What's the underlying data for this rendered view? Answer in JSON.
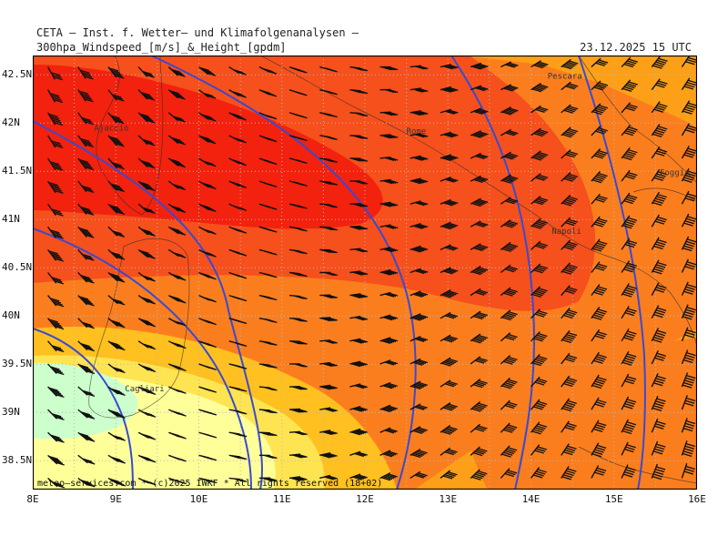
{
  "header": {
    "title": "CETA — Inst. f. Wetter— und Klimafolgenanalysen —",
    "subtitle": "300hpa_Windspeed_[m/s]_&_Height_[gpdm]",
    "valid_time": "23.12.2025 15 UTC"
  },
  "footer": {
    "credit": "meteo—services.com * (c)2025 IWKF * All rights reserved (18+02)"
  },
  "map": {
    "lon_labels": [
      "8E",
      "9E",
      "10E",
      "11E",
      "12E",
      "13E",
      "14E",
      "15E",
      "16E"
    ],
    "lat_labels": [
      "42.5N",
      "42N",
      "41.5N",
      "41N",
      "40.5N",
      "40N",
      "39.5N",
      "39N",
      "38.5N"
    ],
    "lon_range": [
      8,
      16
    ],
    "lat_range": [
      38.2,
      42.7
    ],
    "cities": [
      {
        "name": "Pescara",
        "lon": 14.2,
        "lat": 42.46
      },
      {
        "name": "Ajaccio",
        "lon": 8.74,
        "lat": 41.92
      },
      {
        "name": "Rome",
        "lon": 12.5,
        "lat": 41.89
      },
      {
        "name": "Foggia",
        "lon": 15.55,
        "lat": 41.46
      },
      {
        "name": "Napoli",
        "lon": 14.25,
        "lat": 40.85
      },
      {
        "name": "Cagliari",
        "lon": 9.11,
        "lat": 39.22
      }
    ],
    "colors": {
      "very_high": "#f2220e",
      "high": "#f6501c",
      "medium_high": "#fb7e1e",
      "medium": "#fda017",
      "low_medium": "#ffc020",
      "low": "#ffe452",
      "very_low": "#ffff9a",
      "lowest": "#ccffcc",
      "contour": "#3a4ad0",
      "grid": "#b8b8b8"
    }
  }
}
